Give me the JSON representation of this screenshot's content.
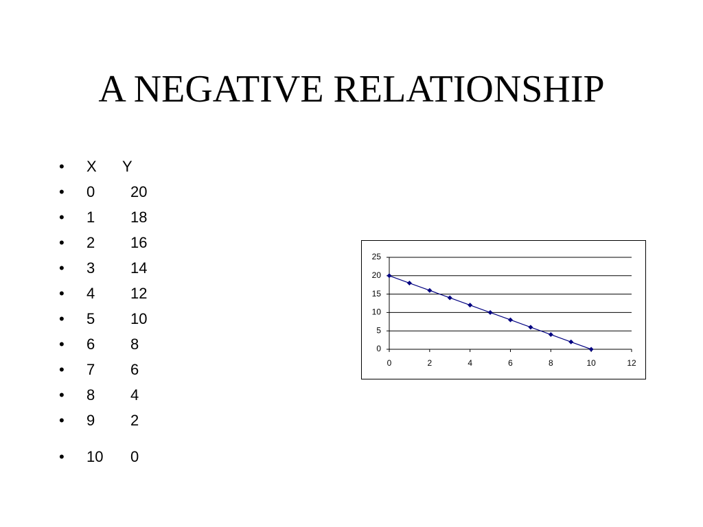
{
  "title": "A NEGATIVE RELATIONSHIP",
  "list": {
    "header": [
      "X",
      "Y"
    ],
    "rows": [
      [
        "0",
        "20"
      ],
      [
        "1",
        "18"
      ],
      [
        "2",
        "16"
      ],
      [
        "3",
        "14"
      ],
      [
        "4",
        "12"
      ],
      [
        "5",
        "10"
      ],
      [
        "6",
        "8"
      ],
      [
        "7",
        "6"
      ],
      [
        "8",
        "4"
      ],
      [
        "9",
        "2"
      ],
      [
        "10",
        "0"
      ]
    ]
  },
  "chart_data": {
    "type": "line",
    "x": [
      0,
      1,
      2,
      3,
      4,
      5,
      6,
      7,
      8,
      9,
      10
    ],
    "values": [
      20,
      18,
      16,
      14,
      12,
      10,
      8,
      6,
      4,
      2,
      0
    ],
    "color": "#000080",
    "xlim": [
      0,
      12
    ],
    "xticks": [
      0,
      2,
      4,
      6,
      8,
      10,
      12
    ],
    "ylim": [
      0,
      25
    ],
    "yticks": [
      0,
      5,
      10,
      15,
      20,
      25
    ],
    "grid": true
  }
}
